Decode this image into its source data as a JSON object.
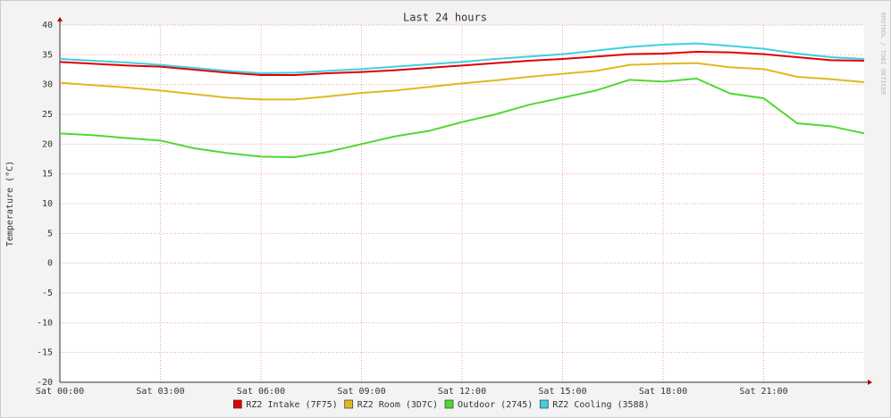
{
  "chart_data": {
    "type": "line",
    "title": "Last 24 hours",
    "y_label": "Temperature (°C)",
    "watermark": "RRDTOOL / TOBI OETIKER",
    "x": [
      0,
      1,
      2,
      3,
      4,
      5,
      6,
      7,
      8,
      9,
      10,
      11,
      12,
      13,
      14,
      15,
      16,
      17,
      18,
      19,
      20,
      21,
      22,
      23,
      24
    ],
    "xlim": [
      0,
      24
    ],
    "xticks": [
      {
        "value": 0,
        "label": "Sat 00:00"
      },
      {
        "value": 3,
        "label": "Sat 03:00"
      },
      {
        "value": 6,
        "label": "Sat 06:00"
      },
      {
        "value": 9,
        "label": "Sat 09:00"
      },
      {
        "value": 12,
        "label": "Sat 12:00"
      },
      {
        "value": 15,
        "label": "Sat 15:00"
      },
      {
        "value": 18,
        "label": "Sat 18:00"
      },
      {
        "value": 21,
        "label": "Sat 21:00"
      }
    ],
    "ylim": [
      -20,
      40
    ],
    "yticks": [
      -20,
      -15,
      -10,
      -5,
      0,
      5,
      10,
      15,
      20,
      25,
      30,
      35,
      40
    ],
    "grid": true,
    "series": [
      {
        "name": "RZ2 Intake (7F75)",
        "color": "#e00000",
        "values": [
          33.8,
          33.5,
          33.2,
          33.0,
          32.5,
          32.0,
          31.6,
          31.6,
          31.9,
          32.1,
          32.4,
          32.8,
          33.2,
          33.6,
          34.0,
          34.3,
          34.7,
          35.1,
          35.2,
          35.5,
          35.4,
          35.1,
          34.6,
          34.1,
          34.0
        ]
      },
      {
        "name": "RZ2 Room (3D7C)",
        "color": "#e0b820",
        "values": [
          30.3,
          29.9,
          29.5,
          29.0,
          28.4,
          27.8,
          27.5,
          27.5,
          28.0,
          28.6,
          29.0,
          29.6,
          30.2,
          30.7,
          31.3,
          31.8,
          32.3,
          33.3,
          33.5,
          33.6,
          32.9,
          32.6,
          31.3,
          30.9,
          30.4
        ]
      },
      {
        "name": "Outdoor (2745)",
        "color": "#50d830",
        "values": [
          21.8,
          21.5,
          21.0,
          20.6,
          19.3,
          18.5,
          17.9,
          17.8,
          18.7,
          20.0,
          21.3,
          22.2,
          23.7,
          25.0,
          26.6,
          27.8,
          29.0,
          30.8,
          30.5,
          31.0,
          28.5,
          27.7,
          23.5,
          23.0,
          21.8
        ]
      },
      {
        "name": "RZ2 Cooling (3588)",
        "color": "#40d0e0",
        "values": [
          34.3,
          34.0,
          33.7,
          33.3,
          32.8,
          32.3,
          31.9,
          32.0,
          32.3,
          32.6,
          33.0,
          33.4,
          33.8,
          34.3,
          34.7,
          35.1,
          35.7,
          36.3,
          36.7,
          36.9,
          36.5,
          36.0,
          35.2,
          34.6,
          34.3
        ]
      }
    ]
  }
}
